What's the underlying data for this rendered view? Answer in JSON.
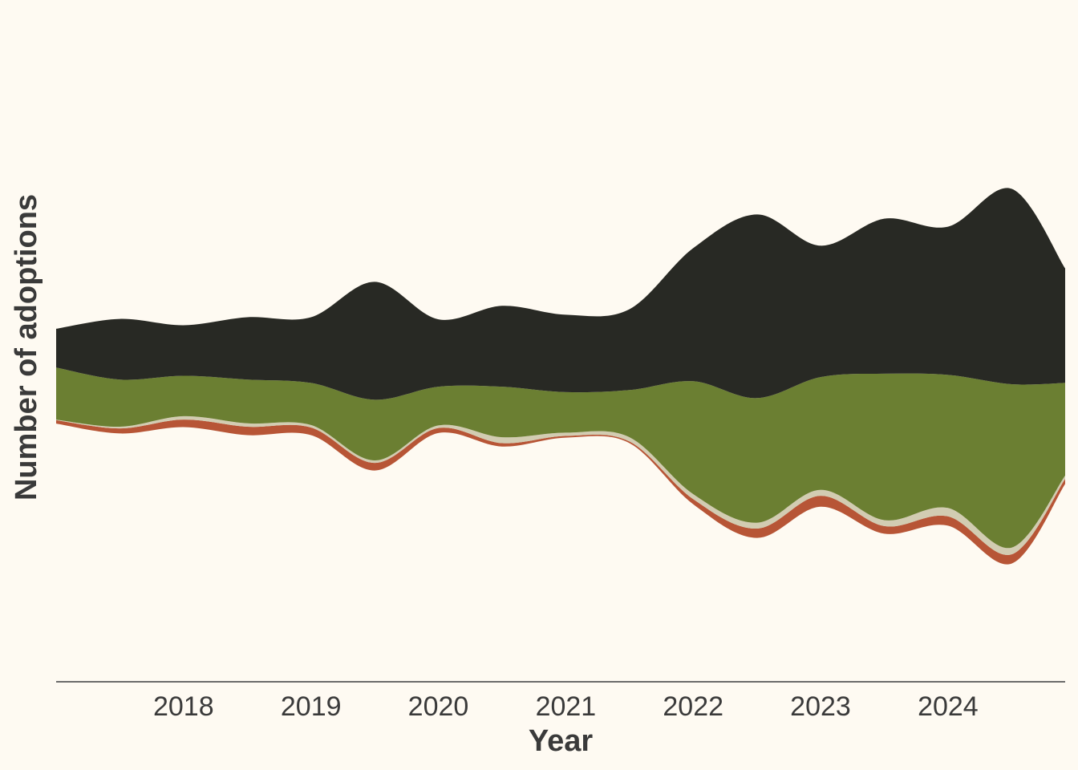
{
  "chart_data": {
    "type": "area",
    "subtype": "streamgraph",
    "title": "",
    "xlabel": "Year",
    "ylabel": "Number of adoptions",
    "x_ticks": [
      "2018",
      "2019",
      "2020",
      "2021",
      "2022",
      "2023",
      "2024"
    ],
    "x_tick_values": [
      2018,
      2019,
      2020,
      2021,
      2022,
      2023,
      2024
    ],
    "xlim": [
      2017.0,
      2024.92
    ],
    "y_axis_labels_shown": false,
    "grid": false,
    "legend": "none",
    "x": [
      2017.0,
      2017.5,
      2018.0,
      2018.5,
      2019.0,
      2019.5,
      2020.0,
      2020.5,
      2021.0,
      2021.5,
      2022.0,
      2022.5,
      2023.0,
      2023.5,
      2024.0,
      2024.5,
      2024.92
    ],
    "series": [
      {
        "color": "#b75536",
        "values": [
          2,
          3,
          4.5,
          5,
          4.5,
          4.5,
          3,
          2,
          1,
          1,
          3,
          5.5,
          6.5,
          4.5,
          5.5,
          5.5,
          3
        ]
      },
      {
        "color": "#d2ccb2",
        "values": [
          0.3,
          1,
          2,
          2,
          1.5,
          1.5,
          1.5,
          3.5,
          2,
          2.5,
          3,
          3.5,
          3.5,
          3.5,
          5,
          4,
          2
        ]
      },
      {
        "color": "#6b7f32",
        "values": [
          31,
          28,
          24,
          26,
          25,
          36,
          23,
          30,
          24,
          28,
          67,
          74,
          67,
          87,
          79,
          97,
          55
        ]
      },
      {
        "color": "#282924",
        "values": [
          23,
          36,
          30,
          37,
          39,
          70,
          40,
          48,
          46,
          48,
          79,
          109,
          78,
          92,
          88,
          116,
          68
        ]
      }
    ],
    "curve": "smooth",
    "baseline": "center"
  }
}
